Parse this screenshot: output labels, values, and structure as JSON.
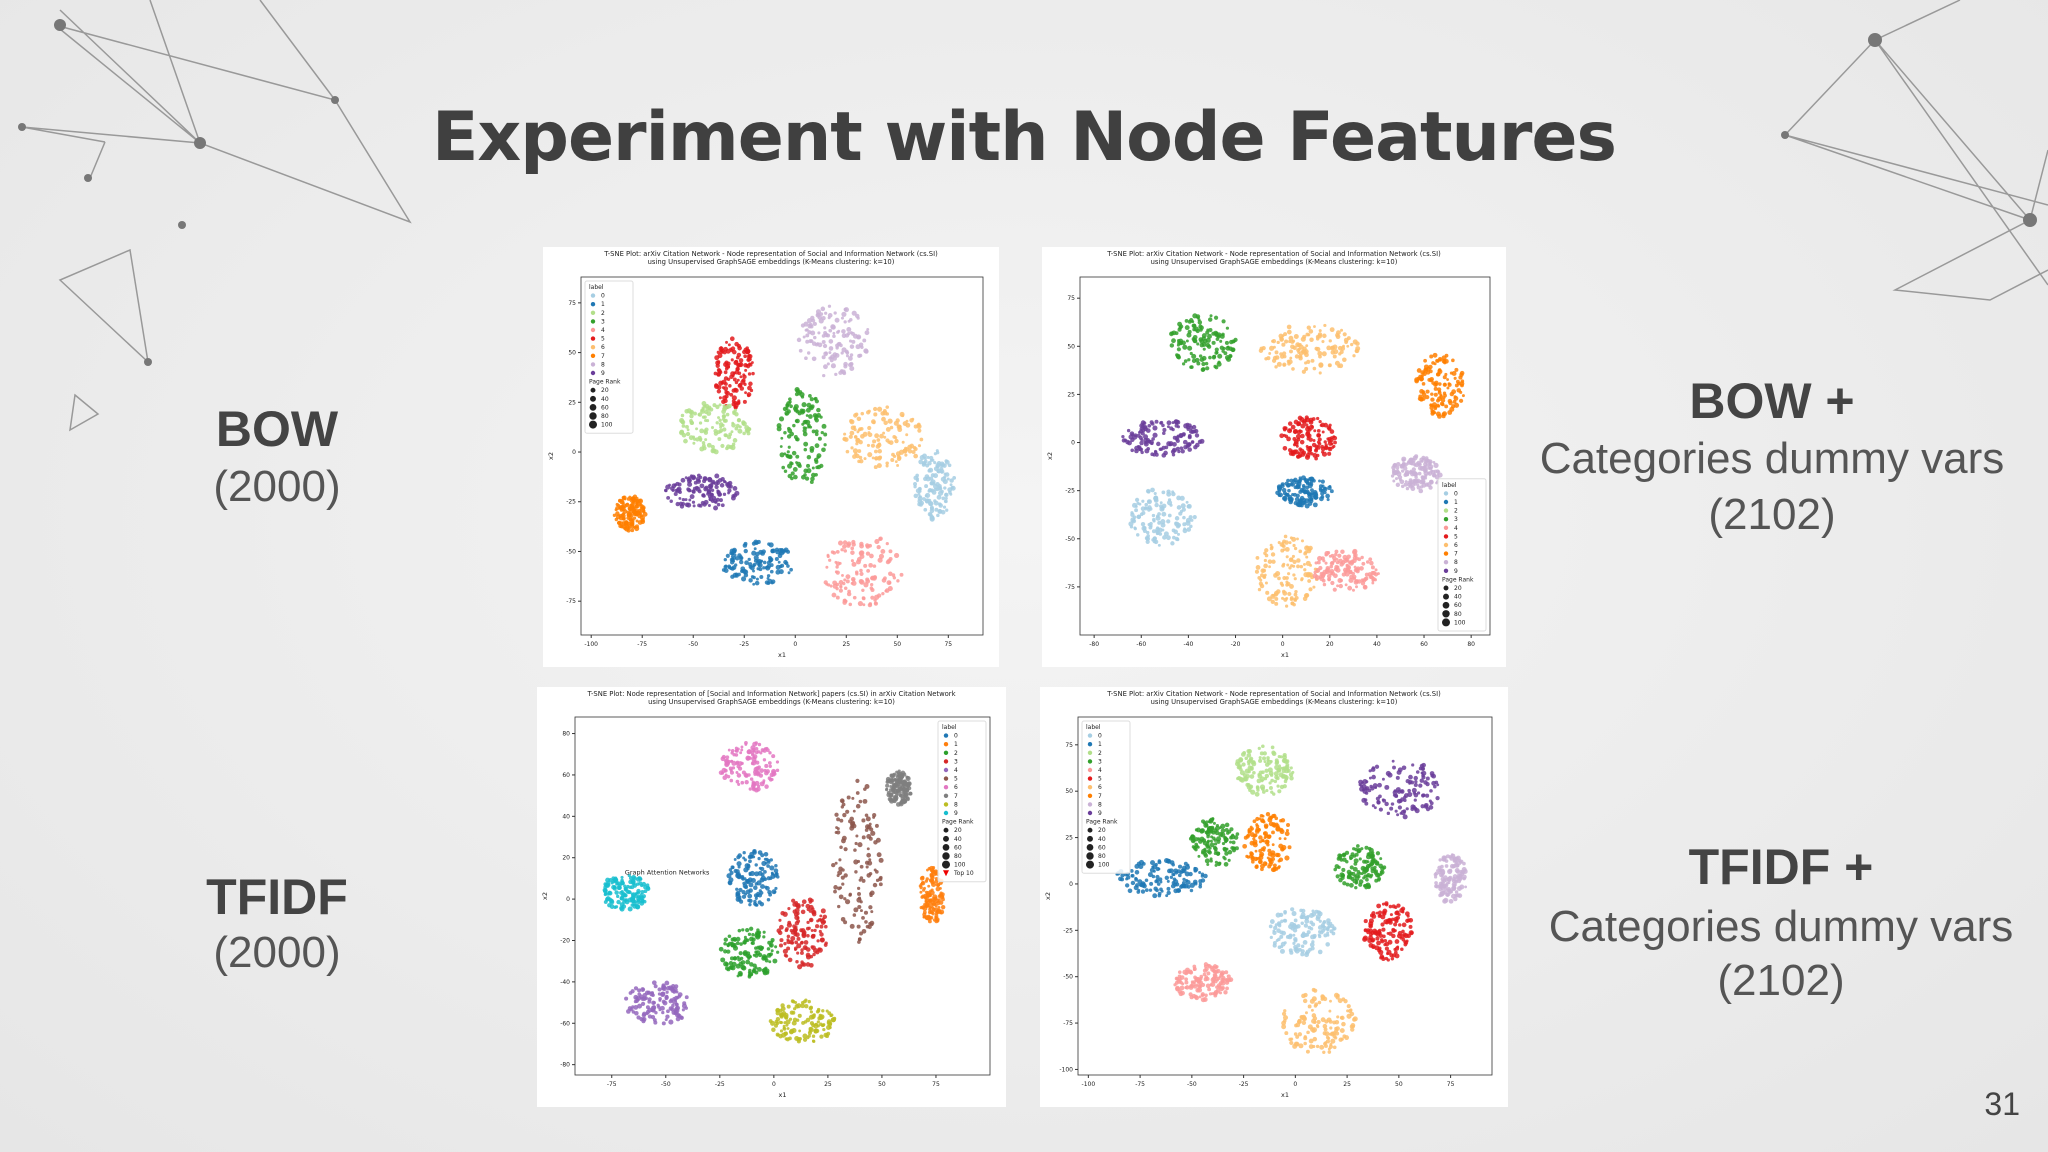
{
  "slide": {
    "title": "Experiment with Node Features",
    "page_number": "31",
    "left_labels": [
      {
        "name": "BOW",
        "size": "(2000)"
      },
      {
        "name": "TFIDF",
        "size": "(2000)"
      }
    ],
    "right_labels": [
      {
        "name": "BOW +",
        "desc": "Categories dummy vars",
        "size": "(2102)"
      },
      {
        "name": "TFIDF +",
        "desc": "Categories dummy vars",
        "size": "(2102)"
      }
    ],
    "plots": [
      {
        "title": [
          "T-SNE Plot: arXiv Citation Network - Node representation of Social and Information Network (cs.SI)",
          "using Unsupervised GraphSAGE embeddings (K-Means clustering: k=10)"
        ],
        "xlabel": "x1",
        "ylabel": "x2",
        "xlim": [
          -105,
          92
        ],
        "ylim": [
          -92,
          88
        ],
        "xticks": [
          -100,
          -75,
          -50,
          -25,
          0,
          25,
          50,
          75
        ],
        "yticks": [
          -75,
          -50,
          -25,
          0,
          25,
          50,
          75
        ],
        "legend_title": "label",
        "legend": [
          "0",
          "1",
          "2",
          "3",
          "4",
          "5",
          "6",
          "7",
          "8",
          "9"
        ],
        "size_title": "Page Rank",
        "sizes": [
          20,
          40,
          60,
          80,
          100
        ],
        "legend_corner": "upper left",
        "colors": [
          "#a6cee3",
          "#1f78b4",
          "#b2df8a",
          "#33a02c",
          "#fb9a99",
          "#e31a1c",
          "#fdbf6f",
          "#ff7f00",
          "#cab2d6",
          "#6a3d9a"
        ]
      },
      {
        "title": [
          "T-SNE Plot: arXiv Citation Network - Node representation of Social and Information Network (cs.SI)",
          "using Unsupervised GraphSAGE embeddings (K-Means clustering: k=10)"
        ],
        "xlabel": "x1",
        "ylabel": "x2",
        "xlim": [
          -86,
          88
        ],
        "ylim": [
          -100,
          86
        ],
        "xticks": [
          -80,
          -60,
          -40,
          -20,
          0,
          20,
          40,
          60,
          80
        ],
        "yticks": [
          -75,
          -50,
          -25,
          0,
          25,
          50,
          75
        ],
        "legend_title": "label",
        "legend": [
          "0",
          "1",
          "2",
          "3",
          "4",
          "5",
          "6",
          "7",
          "8",
          "9"
        ],
        "size_title": "Page Rank",
        "sizes": [
          20,
          40,
          60,
          80,
          100
        ],
        "legend_corner": "lower right",
        "colors": [
          "#a6cee3",
          "#1f78b4",
          "#b2df8a",
          "#33a02c",
          "#fb9a99",
          "#e31a1c",
          "#fdbf6f",
          "#ff7f00",
          "#cab2d6",
          "#6a3d9a"
        ]
      },
      {
        "title": [
          "T-SNE Plot: Node representation of [Social and Information Network] papers (cs.SI) in arXiv Citation Network",
          "using Unsupervised GraphSAGE embeddings (K-Means clustering: k=10)"
        ],
        "xlabel": "x1",
        "ylabel": "x2",
        "xlim": [
          -92,
          100
        ],
        "ylim": [
          -85,
          88
        ],
        "xticks": [
          -75,
          -50,
          -25,
          0,
          25,
          50,
          75
        ],
        "yticks": [
          -80,
          -60,
          -40,
          -20,
          0,
          20,
          40,
          60,
          80
        ],
        "legend_title": "label",
        "legend": [
          "0",
          "1",
          "2",
          "3",
          "4",
          "5",
          "6",
          "7",
          "8",
          "9"
        ],
        "size_title": "Page Rank",
        "sizes": [
          20,
          40,
          60,
          80,
          100
        ],
        "top_label": "Top 10",
        "legend_corner": "upper right",
        "annotation": "Graph Attention Networks",
        "colors": [
          "#1f77b4",
          "#ff7f0e",
          "#2ca02c",
          "#d62728",
          "#9467bd",
          "#8c564b",
          "#e377c2",
          "#7f7f7f",
          "#bcbd22",
          "#17becf"
        ]
      },
      {
        "title": [
          "T-SNE Plot: arXiv Citation Network - Node representation of Social and Information Network (cs.SI)",
          "using Unsupervised GraphSAGE embeddings (K-Means clustering: k=10)"
        ],
        "xlabel": "x1",
        "ylabel": "x2",
        "xlim": [
          -105,
          95
        ],
        "ylim": [
          -103,
          90
        ],
        "xticks": [
          -100,
          -75,
          -50,
          -25,
          0,
          25,
          50,
          75
        ],
        "yticks": [
          -100,
          -75,
          -50,
          -25,
          0,
          25,
          50,
          75
        ],
        "legend_title": "label",
        "legend": [
          "0",
          "1",
          "2",
          "3",
          "4",
          "5",
          "6",
          "7",
          "8",
          "9"
        ],
        "size_title": "Page Rank",
        "sizes": [
          20,
          40,
          60,
          80,
          100
        ],
        "legend_corner": "upper left",
        "colors": [
          "#a6cee3",
          "#1f78b4",
          "#b2df8a",
          "#33a02c",
          "#fb9a99",
          "#e31a1c",
          "#fdbf6f",
          "#ff7f00",
          "#cab2d6",
          "#6a3d9a"
        ]
      }
    ]
  }
}
